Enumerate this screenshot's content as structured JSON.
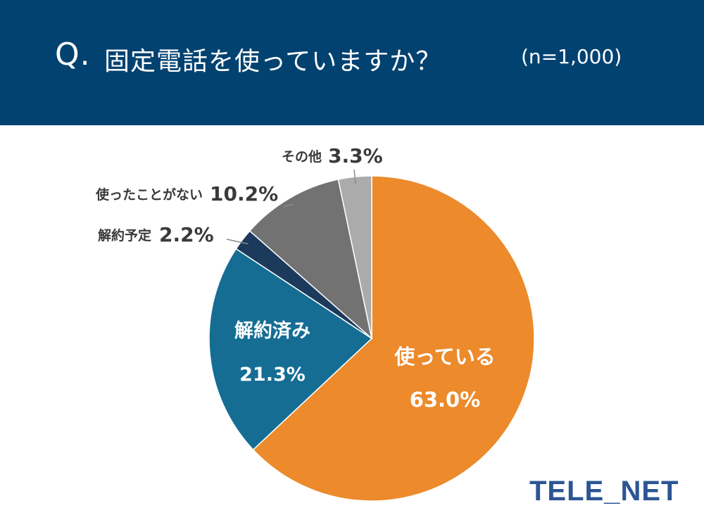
{
  "header": {
    "q_mark": "Q.",
    "question": "固定電話を使っていますか？",
    "sample": "(n=1,000)"
  },
  "logo": "TELE_NET",
  "colors": {
    "header_bg": "#024270",
    "using": "#EC8A2C",
    "cancelled": "#156D94",
    "planning": "#1B3A5C",
    "never": "#717271",
    "other": "#ABABAB"
  },
  "chart_data": {
    "type": "pie",
    "title": "固定電話を使っていますか？",
    "slices": [
      {
        "label": "使っている",
        "value": 63.0,
        "display": "63.0%",
        "color": "#EC8A2C"
      },
      {
        "label": "解約済み",
        "value": 21.3,
        "display": "21.3%",
        "color": "#156D94"
      },
      {
        "label": "解約予定",
        "value": 2.2,
        "display": "2.2%",
        "color": "#1B3A5C"
      },
      {
        "label": "使ったことがない",
        "value": 10.2,
        "display": "10.2%",
        "color": "#717271"
      },
      {
        "label": "その他",
        "value": 3.3,
        "display": "3.3%",
        "color": "#ABABAB"
      }
    ]
  }
}
